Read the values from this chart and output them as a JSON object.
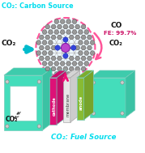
{
  "title_top": "CO₂: Carbon Source",
  "title_bottom": "CO₂: Fuel Source",
  "co2_label_left": "CO₂",
  "co2_label_bottom": "CO₂",
  "co_label": "CO",
  "fe_label": "FE: 99.7%",
  "co2_right_label": "CO₂",
  "cathode_label": "cathode",
  "membrane_label": "membrane",
  "anode_label": "anode",
  "bg_color": "#ffffff",
  "title_color": "#00ddee",
  "circle_edge_color": "#ff5599",
  "arrow_cyan_color": "#00bbcc",
  "arrow_pink_color": "#ee1177",
  "cell_color": "#44ddbb",
  "cathode_fill": "#dd1177",
  "anode_fill": "#88bb33",
  "atom_C_color": "#999999",
  "atom_N_color": "#3344dd",
  "atom_metal_color": "#bb44cc",
  "fe_text_color": "#cc1166",
  "bolt_color": "#aaaaaa",
  "screw_color": "#888888"
}
